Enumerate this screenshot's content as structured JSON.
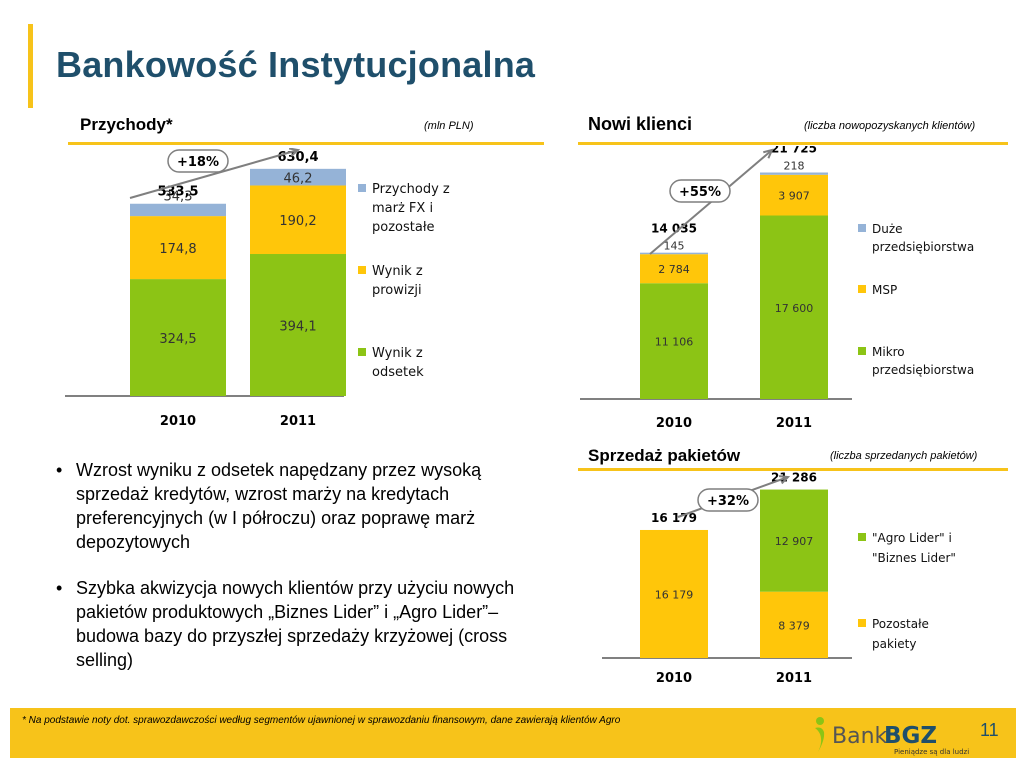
{
  "title": "Bankowość Instytucjonalna",
  "sections": {
    "przychody": {
      "title": "Przychody*",
      "note": "(mln PLN)"
    },
    "klienci": {
      "title": "Nowi klienci",
      "note": "(liczba nowopozyskanych klientów)"
    },
    "pakiety": {
      "title": "Sprzedaż pakietów",
      "note": "(liczba sprzedanych pakietów)"
    }
  },
  "bullets": [
    "Wzrost wyniku z odsetek napędzany przez wysoką sprzedaż kredytów, wzrost marży na kredytach preferencyjnych (w I półroczu) oraz poprawę marż depozytowych",
    "Szybka akwizycja nowych klientów przy użyciu nowych pakietów produktowych „Biznes Lider” i „Agro Lider”– budowa bazy do przyszłej sprzedaży krzyżowej (cross selling)"
  ],
  "footnote": "*  Na podstawie noty dot. sprawozdawczości według segmentów ujawnionej w sprawozdaniu finansowym, dane zawierają klientów Agro",
  "page_number": "11",
  "logo": {
    "name": "Bank",
    "brand": "BGZ",
    "tagline": "Pieniądze są dla ludzi"
  },
  "colors": {
    "title": "#1f4f6b",
    "accent": "#f7c31a",
    "green": "#8cc415",
    "yellow": "#ffc60a",
    "blue": "#95b3d7"
  },
  "chart_data": [
    {
      "id": "przychody",
      "type": "bar",
      "stacked": true,
      "categories": [
        "2010",
        "2011"
      ],
      "series": [
        {
          "name": "Wynik z odsetek",
          "color": "#8cc415",
          "values": [
            324.5,
            394.1
          ],
          "labels": [
            "324,5",
            "394,1"
          ]
        },
        {
          "name": "Wynik z prowizji",
          "color": "#ffc60a",
          "values": [
            174.8,
            190.2
          ],
          "labels": [
            "174,8",
            "190,2"
          ]
        },
        {
          "name": "Przychody z marż FX i pozostałe",
          "color": "#95b3d7",
          "values": [
            34.3,
            46.2
          ],
          "labels": [
            "34,3",
            "46,2"
          ]
        }
      ],
      "totals": [
        "533,5",
        "630,4"
      ],
      "growth": "+18%",
      "legend_position": "right",
      "ylim": [
        0,
        680
      ]
    },
    {
      "id": "klienci",
      "type": "bar",
      "stacked": true,
      "categories": [
        "2010",
        "2011"
      ],
      "series": [
        {
          "name": "Mikro przedsiębiorstwa",
          "color": "#8cc415",
          "values": [
            11106,
            17600
          ],
          "labels": [
            "11 106",
            "17 600"
          ]
        },
        {
          "name": "MSP",
          "color": "#ffc60a",
          "values": [
            2784,
            3907
          ],
          "labels": [
            "2 784",
            "3 907"
          ]
        },
        {
          "name": "Duże przedsiębiorstwa",
          "color": "#95b3d7",
          "values": [
            145,
            218
          ],
          "labels": [
            "145",
            "218"
          ]
        }
      ],
      "totals": [
        "14 035",
        "21 725"
      ],
      "growth": "+55%",
      "legend_position": "right",
      "ylim": [
        0,
        23500
      ]
    },
    {
      "id": "pakiety",
      "type": "bar",
      "stacked": true,
      "categories": [
        "2010",
        "2011"
      ],
      "series": [
        {
          "name": "Pozostałe pakiety",
          "color": "#ffc60a",
          "values": [
            16179,
            8379
          ],
          "labels": [
            "16 179",
            "8 379"
          ]
        },
        {
          "name": "\"Agro Lider\" i \"Biznes Lider\"",
          "color": "#8cc415",
          "values": [
            0,
            12907
          ],
          "labels": [
            "",
            "12 907"
          ]
        }
      ],
      "totals": [
        "16 179",
        "21 286"
      ],
      "growth": "+32%",
      "legend_position": "right",
      "ylim": [
        0,
        23000
      ]
    }
  ]
}
